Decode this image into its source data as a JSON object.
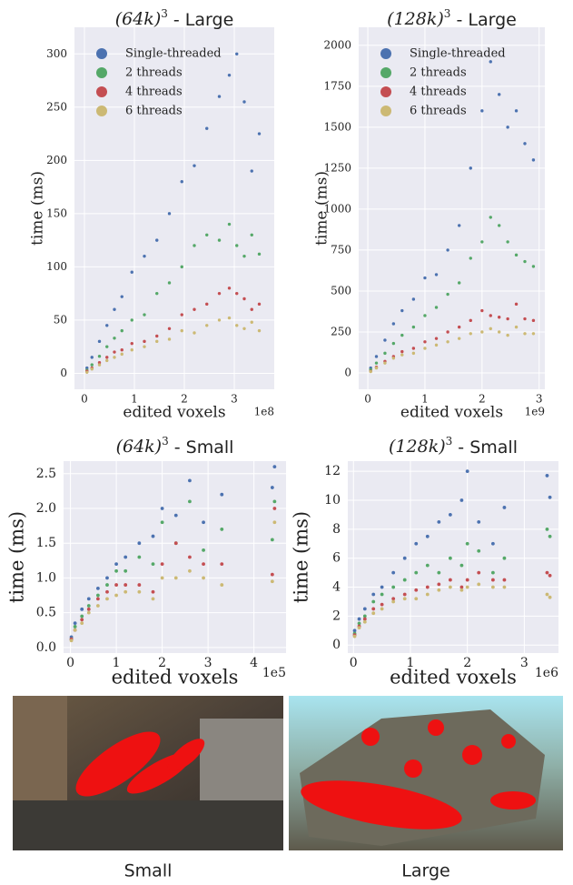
{
  "chart_data": [
    {
      "type": "scatter",
      "title": {
        "base": "(64k)",
        "sup": "3",
        "rest": " - Large"
      },
      "x_label": "edited voxels",
      "y_label": "time (ms)",
      "x_offset": "1e8",
      "legend": "upper left",
      "grid": true,
      "xlim": [
        -0.2,
        3.8
      ],
      "ylim": [
        -15,
        325
      ],
      "xticks": [
        0,
        1,
        2,
        3
      ],
      "yticks": [
        0,
        50,
        100,
        150,
        200,
        250,
        300
      ],
      "series": [
        {
          "name": "Single-threaded",
          "color": "#4c72b0",
          "x": [
            0.05,
            0.15,
            0.3,
            0.45,
            0.6,
            0.75,
            0.95,
            1.2,
            1.45,
            1.7,
            1.95,
            2.2,
            2.45,
            2.7,
            2.9,
            3.05,
            3.2,
            3.35,
            3.5
          ],
          "values": [
            5,
            15,
            30,
            45,
            60,
            72,
            95,
            110,
            125,
            150,
            180,
            195,
            230,
            260,
            280,
            300,
            255,
            190,
            225
          ]
        },
        {
          "name": "2 threads",
          "color": "#55a868",
          "x": [
            0.05,
            0.15,
            0.3,
            0.45,
            0.6,
            0.75,
            0.95,
            1.2,
            1.45,
            1.7,
            1.95,
            2.2,
            2.45,
            2.7,
            2.9,
            3.05,
            3.2,
            3.35,
            3.5
          ],
          "values": [
            3,
            8,
            16,
            25,
            33,
            40,
            50,
            55,
            75,
            85,
            100,
            120,
            130,
            125,
            140,
            120,
            110,
            130,
            112
          ]
        },
        {
          "name": "4 threads",
          "color": "#c44e52",
          "x": [
            0.05,
            0.15,
            0.3,
            0.45,
            0.6,
            0.75,
            0.95,
            1.2,
            1.45,
            1.7,
            1.95,
            2.2,
            2.45,
            2.7,
            2.9,
            3.05,
            3.2,
            3.35,
            3.5
          ],
          "values": [
            2,
            5,
            10,
            15,
            20,
            22,
            28,
            30,
            35,
            42,
            55,
            60,
            65,
            75,
            80,
            75,
            70,
            60,
            65
          ]
        },
        {
          "name": "6 threads",
          "color": "#ccb974",
          "x": [
            0.05,
            0.15,
            0.3,
            0.45,
            0.6,
            0.75,
            0.95,
            1.2,
            1.45,
            1.7,
            1.95,
            2.2,
            2.45,
            2.7,
            2.9,
            3.05,
            3.2,
            3.35,
            3.5
          ],
          "values": [
            1,
            4,
            8,
            12,
            15,
            18,
            22,
            25,
            30,
            32,
            40,
            38,
            45,
            50,
            52,
            45,
            42,
            48,
            40
          ]
        }
      ]
    },
    {
      "type": "scatter",
      "title": {
        "base": "(128k)",
        "sup": "3",
        "rest": " - Large"
      },
      "x_label": "edited voxels",
      "y_label": "time (ms)",
      "x_offset": "1e9",
      "legend": "upper left",
      "grid": true,
      "xlim": [
        -0.16,
        3.1
      ],
      "ylim": [
        -100,
        2110
      ],
      "xticks": [
        0,
        1,
        2,
        3
      ],
      "yticks": [
        0,
        250,
        500,
        750,
        1000,
        1250,
        1500,
        1750,
        2000
      ],
      "series": [
        {
          "name": "Single-threaded",
          "color": "#4c72b0",
          "x": [
            0.05,
            0.15,
            0.3,
            0.45,
            0.6,
            0.8,
            1.0,
            1.2,
            1.4,
            1.6,
            1.8,
            2.0,
            2.15,
            2.3,
            2.45,
            2.6,
            2.75,
            2.9
          ],
          "values": [
            30,
            100,
            200,
            300,
            380,
            450,
            580,
            600,
            750,
            900,
            1250,
            1600,
            1900,
            1700,
            1500,
            1600,
            1400,
            1300
          ]
        },
        {
          "name": "2 threads",
          "color": "#55a868",
          "x": [
            0.05,
            0.15,
            0.3,
            0.45,
            0.6,
            0.8,
            1.0,
            1.2,
            1.4,
            1.6,
            1.8,
            2.0,
            2.15,
            2.3,
            2.45,
            2.6,
            2.75,
            2.9
          ],
          "values": [
            20,
            60,
            120,
            180,
            230,
            280,
            350,
            400,
            480,
            550,
            700,
            800,
            950,
            900,
            800,
            720,
            680,
            650
          ]
        },
        {
          "name": "4 threads",
          "color": "#c44e52",
          "x": [
            0.05,
            0.15,
            0.3,
            0.45,
            0.6,
            0.8,
            1.0,
            1.2,
            1.4,
            1.6,
            1.8,
            2.0,
            2.15,
            2.3,
            2.45,
            2.6,
            2.75,
            2.9
          ],
          "values": [
            10,
            35,
            70,
            100,
            130,
            150,
            190,
            210,
            250,
            280,
            320,
            380,
            350,
            340,
            330,
            420,
            330,
            320
          ]
        },
        {
          "name": "6 threads",
          "color": "#ccb974",
          "x": [
            0.05,
            0.15,
            0.3,
            0.45,
            0.6,
            0.8,
            1.0,
            1.2,
            1.4,
            1.6,
            1.8,
            2.0,
            2.15,
            2.3,
            2.45,
            2.6,
            2.75,
            2.9
          ],
          "values": [
            8,
            30,
            60,
            90,
            110,
            120,
            150,
            170,
            190,
            210,
            240,
            250,
            270,
            250,
            230,
            280,
            240,
            240
          ]
        }
      ]
    },
    {
      "type": "scatter",
      "title": {
        "base": "(64k)",
        "sup": "3",
        "rest": " - Small"
      },
      "x_label": "edited voxels",
      "y_label": "time (ms)",
      "x_offset": "1e5",
      "grid": true,
      "xlim": [
        -0.15,
        4.7
      ],
      "ylim": [
        -0.08,
        2.68
      ],
      "xticks": [
        0,
        1,
        2,
        3,
        4
      ],
      "yticks": [
        {
          "value": 0,
          "label": "0.0"
        },
        0.5,
        {
          "value": 1,
          "label": "1.0"
        },
        1.5,
        {
          "value": 2,
          "label": "2.0"
        },
        2.5
      ],
      "series": [
        {
          "color": "#4c72b0",
          "x": [
            0.02,
            0.1,
            0.25,
            0.4,
            0.6,
            0.8,
            1.0,
            1.2,
            1.5,
            1.8,
            2.0,
            2.3,
            2.6,
            2.9,
            3.3,
            4.4,
            4.45
          ],
          "values": [
            0.15,
            0.35,
            0.55,
            0.7,
            0.85,
            1.0,
            1.2,
            1.3,
            1.5,
            1.6,
            2.0,
            1.9,
            2.4,
            1.8,
            2.2,
            2.3,
            2.6
          ]
        },
        {
          "color": "#55a868",
          "x": [
            0.02,
            0.1,
            0.25,
            0.4,
            0.6,
            0.8,
            1.0,
            1.2,
            1.5,
            1.8,
            2.0,
            2.3,
            2.6,
            2.9,
            3.3,
            4.4,
            4.45
          ],
          "values": [
            0.12,
            0.3,
            0.45,
            0.6,
            0.75,
            0.9,
            1.1,
            1.1,
            1.3,
            1.2,
            1.8,
            1.5,
            2.1,
            1.4,
            1.7,
            1.55,
            2.1
          ]
        },
        {
          "color": "#c44e52",
          "x": [
            0.02,
            0.1,
            0.25,
            0.4,
            0.6,
            0.8,
            1.0,
            1.2,
            1.5,
            1.8,
            2.0,
            2.3,
            2.6,
            2.9,
            3.3,
            4.4,
            4.45
          ],
          "values": [
            0.12,
            0.25,
            0.4,
            0.55,
            0.7,
            0.8,
            0.9,
            0.9,
            0.9,
            0.8,
            1.2,
            1.5,
            1.3,
            1.2,
            1.2,
            1.05,
            2.0
          ]
        },
        {
          "color": "#ccb974",
          "x": [
            0.02,
            0.1,
            0.25,
            0.4,
            0.6,
            0.8,
            1.0,
            1.2,
            1.5,
            1.8,
            2.0,
            2.3,
            2.6,
            2.9,
            3.3,
            4.4,
            4.45
          ],
          "values": [
            0.1,
            0.25,
            0.35,
            0.5,
            0.6,
            0.7,
            0.75,
            0.8,
            0.8,
            0.7,
            1.0,
            1.0,
            1.1,
            1.0,
            0.9,
            0.95,
            1.8
          ]
        }
      ]
    },
    {
      "type": "scatter",
      "title": {
        "base": "(128k)",
        "sup": "3",
        "rest": " - Small"
      },
      "x_label": "edited voxels",
      "y_label": "time (ms)",
      "x_offset": "1e6",
      "grid": true,
      "xlim": [
        -0.1,
        3.6
      ],
      "ylim": [
        -0.55,
        12.7
      ],
      "xticks": [
        0,
        1,
        2,
        3
      ],
      "yticks": [
        0,
        2,
        4,
        6,
        8,
        10,
        12
      ],
      "series": [
        {
          "color": "#4c72b0",
          "x": [
            0.02,
            0.1,
            0.2,
            0.35,
            0.5,
            0.7,
            0.9,
            1.1,
            1.3,
            1.5,
            1.7,
            1.9,
            2.0,
            2.2,
            2.45,
            2.65,
            3.4,
            3.45
          ],
          "values": [
            1,
            1.8,
            2.5,
            3.5,
            4,
            5,
            6,
            7,
            7.5,
            8.5,
            9,
            10,
            12,
            8.5,
            7,
            9.5,
            11.7,
            10.2
          ]
        },
        {
          "color": "#55a868",
          "x": [
            0.02,
            0.1,
            0.2,
            0.35,
            0.5,
            0.7,
            0.9,
            1.1,
            1.3,
            1.5,
            1.7,
            1.9,
            2.0,
            2.2,
            2.45,
            2.65,
            3.4,
            3.45
          ],
          "values": [
            0.8,
            1.5,
            2,
            3,
            3.5,
            4,
            4.5,
            5,
            5.5,
            5,
            6,
            5.5,
            7,
            6.5,
            5,
            6,
            8,
            7.5
          ]
        },
        {
          "color": "#c44e52",
          "x": [
            0.02,
            0.1,
            0.2,
            0.35,
            0.5,
            0.7,
            0.9,
            1.1,
            1.3,
            1.5,
            1.7,
            1.9,
            2.0,
            2.2,
            2.45,
            2.65,
            3.4,
            3.45
          ],
          "values": [
            0.7,
            1.3,
            1.8,
            2.5,
            2.8,
            3.2,
            3.5,
            3.8,
            4,
            4.2,
            4.5,
            4,
            4.5,
            5,
            4.5,
            4.5,
            5,
            4.8
          ]
        },
        {
          "color": "#ccb974",
          "x": [
            0.02,
            0.1,
            0.2,
            0.35,
            0.5,
            0.7,
            0.9,
            1.1,
            1.3,
            1.5,
            1.7,
            1.9,
            2.0,
            2.2,
            2.45,
            2.65,
            3.4,
            3.45
          ],
          "values": [
            0.6,
            1.2,
            1.6,
            2.2,
            2.5,
            3,
            3.2,
            3.2,
            3.5,
            3.8,
            4,
            3.8,
            4,
            4.2,
            4,
            4,
            3.5,
            3.3
          ]
        }
      ]
    }
  ],
  "images": [
    {
      "caption": "Small"
    },
    {
      "caption": "Large"
    }
  ]
}
